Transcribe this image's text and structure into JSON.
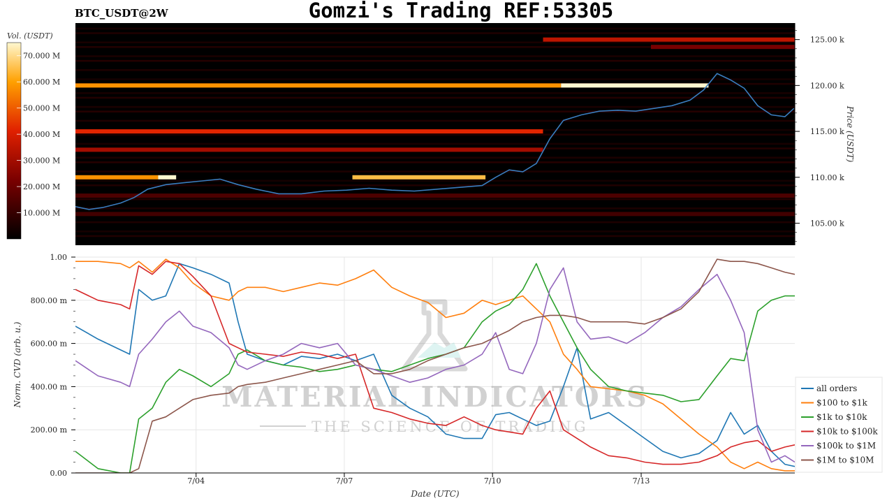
{
  "header": {
    "title": "Gomzi's Trading REF:53305",
    "pair": "BTC_USDT@2W"
  },
  "watermark": {
    "line1": "MATERIAL INDICATORS",
    "line2": "THE SCIENCE OF TRADING"
  },
  "colors": {
    "price_line": "#3a7dbf",
    "heatmap_bg": "#000000"
  },
  "chart_data": [
    {
      "type": "heatmap",
      "title": "",
      "xlabel": "",
      "ylabel": "Price (USDT)",
      "ylim": [
        102600,
        126800
      ],
      "y_ticks": [
        {
          "value": 105000,
          "label": "105.00 k"
        },
        {
          "value": 110000,
          "label": "110.00 k"
        },
        {
          "value": 115000,
          "label": "115.00 k"
        },
        {
          "value": 120000,
          "label": "120.00 k"
        },
        {
          "value": 125000,
          "label": "125.00 k"
        }
      ],
      "colorbar": {
        "label": "Vol. (USDT)",
        "range": [
          0,
          75000000
        ],
        "ticks": [
          {
            "value": 10000000,
            "label": "10.000 M"
          },
          {
            "value": 20000000,
            "label": "20.000 M"
          },
          {
            "value": 30000000,
            "label": "30.000 M"
          },
          {
            "value": 40000000,
            "label": "40.000 M"
          },
          {
            "value": 50000000,
            "label": "50.000 M"
          },
          {
            "value": 60000000,
            "label": "60.000 M"
          },
          {
            "value": 70000000,
            "label": "70.000 M"
          }
        ]
      },
      "liquidity_bands": [
        {
          "price": 125000,
          "x_start": 0.65,
          "x_end": 1.0,
          "volume": 35000000
        },
        {
          "price": 124200,
          "x_start": 0.8,
          "x_end": 1.0,
          "volume": 22000000
        },
        {
          "price": 120000,
          "x_start": 0.0,
          "x_end": 0.675,
          "volume": 58000000
        },
        {
          "price": 120000,
          "x_start": 0.675,
          "x_end": 0.88,
          "volume": 75000000
        },
        {
          "price": 115000,
          "x_start": 0.0,
          "x_end": 0.65,
          "volume": 42000000
        },
        {
          "price": 113000,
          "x_start": 0.0,
          "x_end": 0.65,
          "volume": 30000000
        },
        {
          "price": 110000,
          "x_start": 0.0,
          "x_end": 0.115,
          "volume": 58000000
        },
        {
          "price": 110000,
          "x_start": 0.115,
          "x_end": 0.14,
          "volume": 75000000
        },
        {
          "price": 110000,
          "x_start": 0.385,
          "x_end": 0.57,
          "volume": 65000000
        },
        {
          "price": 108000,
          "x_start": 0.0,
          "x_end": 1.0,
          "volume": 14000000
        },
        {
          "price": 106000,
          "x_start": 0.0,
          "x_end": 1.0,
          "volume": 12000000
        }
      ],
      "price_series": {
        "name": "",
        "x_days": [
          0,
          0.3,
          0.6,
          1.0,
          1.3,
          1.6,
          2.0,
          2.4,
          2.8,
          3.2,
          3.6,
          4.0,
          4.5,
          5.0,
          5.5,
          6.0,
          6.5,
          7.0,
          7.5,
          8.0,
          8.5,
          9.0,
          9.3,
          9.6,
          9.9,
          10.2,
          10.5,
          10.8,
          11.2,
          11.6,
          12.0,
          12.4,
          12.8,
          13.2,
          13.6,
          13.9,
          14.2,
          14.5,
          14.8,
          15.1,
          15.4,
          15.7,
          15.9
        ],
        "y": [
          106800,
          106500,
          106700,
          107200,
          107800,
          108700,
          109200,
          109400,
          109600,
          109800,
          109200,
          108700,
          108200,
          108200,
          108500,
          108600,
          108800,
          108600,
          108500,
          108700,
          108900,
          109100,
          110000,
          110800,
          110600,
          111500,
          114200,
          116200,
          116800,
          117200,
          117300,
          117200,
          117500,
          117800,
          118400,
          119500,
          121300,
          120600,
          119700,
          117800,
          116800,
          116600,
          117500
        ]
      }
    },
    {
      "type": "line",
      "title": "",
      "xlabel": "Date (UTC)",
      "ylabel": "Norm. CVD (arb. u.)",
      "ylim": [
        0,
        1
      ],
      "xlim": [
        0,
        15.92
      ],
      "x_ticks": [
        {
          "value": 2.67,
          "label": "7/04"
        },
        {
          "value": 5.95,
          "label": "7/07"
        },
        {
          "value": 9.23,
          "label": "7/10"
        },
        {
          "value": 12.52,
          "label": "7/13"
        }
      ],
      "y_ticks": [
        {
          "value": 0,
          "label": "0.00"
        },
        {
          "value": 0.2,
          "label": "200.00 m"
        },
        {
          "value": 0.4,
          "label": "400.00 m"
        },
        {
          "value": 0.6,
          "label": "600.00 m"
        },
        {
          "value": 0.8,
          "label": "800.00 m"
        },
        {
          "value": 1.0,
          "label": "1.00"
        }
      ],
      "legend_placement": "bottom-right",
      "x": [
        0,
        0.5,
        1.0,
        1.2,
        1.4,
        1.7,
        2.0,
        2.3,
        2.6,
        3.0,
        3.4,
        3.6,
        3.8,
        4.2,
        4.6,
        5.0,
        5.4,
        5.8,
        6.2,
        6.6,
        7.0,
        7.4,
        7.8,
        8.2,
        8.6,
        9.0,
        9.3,
        9.6,
        9.9,
        10.2,
        10.5,
        10.8,
        11.1,
        11.4,
        11.8,
        12.2,
        12.6,
        13.0,
        13.4,
        13.8,
        14.2,
        14.5,
        14.8,
        15.1,
        15.4,
        15.7,
        15.92
      ],
      "series": [
        {
          "name": "all orders",
          "color": "#1f77b4",
          "values": [
            0.68,
            0.62,
            0.57,
            0.55,
            0.85,
            0.8,
            0.82,
            0.97,
            0.95,
            0.92,
            0.88,
            0.7,
            0.55,
            0.52,
            0.5,
            0.54,
            0.53,
            0.55,
            0.52,
            0.55,
            0.36,
            0.3,
            0.26,
            0.18,
            0.16,
            0.16,
            0.27,
            0.28,
            0.25,
            0.22,
            0.24,
            0.4,
            0.58,
            0.25,
            0.28,
            0.22,
            0.16,
            0.1,
            0.07,
            0.09,
            0.15,
            0.28,
            0.18,
            0.22,
            0.1,
            0.04,
            0.03
          ]
        },
        {
          "name": "$100 to $1k",
          "color": "#ff7f0e",
          "values": [
            0.98,
            0.98,
            0.97,
            0.95,
            0.98,
            0.93,
            0.99,
            0.95,
            0.88,
            0.82,
            0.8,
            0.84,
            0.86,
            0.86,
            0.84,
            0.86,
            0.88,
            0.87,
            0.9,
            0.94,
            0.86,
            0.82,
            0.79,
            0.72,
            0.74,
            0.8,
            0.78,
            0.8,
            0.82,
            0.76,
            0.7,
            0.55,
            0.48,
            0.4,
            0.39,
            0.38,
            0.36,
            0.32,
            0.25,
            0.18,
            0.12,
            0.05,
            0.02,
            0.05,
            0.02,
            0.01,
            0.01
          ]
        },
        {
          "name": "$1k to $10k",
          "color": "#2ca02c",
          "values": [
            0.1,
            0.02,
            0.0,
            0.0,
            0.25,
            0.3,
            0.42,
            0.48,
            0.45,
            0.4,
            0.46,
            0.55,
            0.57,
            0.52,
            0.5,
            0.49,
            0.47,
            0.48,
            0.5,
            0.48,
            0.47,
            0.5,
            0.53,
            0.55,
            0.58,
            0.7,
            0.75,
            0.78,
            0.85,
            0.97,
            0.82,
            0.7,
            0.58,
            0.48,
            0.4,
            0.38,
            0.37,
            0.36,
            0.33,
            0.34,
            0.45,
            0.53,
            0.52,
            0.75,
            0.8,
            0.82,
            0.82
          ]
        },
        {
          "name": "$10k to $100k",
          "color": "#d62728",
          "values": [
            0.85,
            0.8,
            0.78,
            0.76,
            0.96,
            0.92,
            0.98,
            0.97,
            0.91,
            0.82,
            0.6,
            0.58,
            0.56,
            0.55,
            0.54,
            0.56,
            0.55,
            0.53,
            0.55,
            0.3,
            0.28,
            0.25,
            0.23,
            0.22,
            0.26,
            0.22,
            0.2,
            0.19,
            0.18,
            0.3,
            0.38,
            0.2,
            0.16,
            0.12,
            0.08,
            0.07,
            0.05,
            0.04,
            0.04,
            0.05,
            0.08,
            0.12,
            0.14,
            0.15,
            0.1,
            0.12,
            0.13
          ]
        },
        {
          "name": "$100k to $1M",
          "color": "#9467bd",
          "values": [
            0.52,
            0.45,
            0.42,
            0.4,
            0.55,
            0.62,
            0.7,
            0.75,
            0.68,
            0.65,
            0.58,
            0.5,
            0.48,
            0.52,
            0.55,
            0.6,
            0.58,
            0.6,
            0.5,
            0.48,
            0.45,
            0.42,
            0.44,
            0.48,
            0.5,
            0.55,
            0.65,
            0.48,
            0.46,
            0.6,
            0.85,
            0.95,
            0.7,
            0.62,
            0.63,
            0.6,
            0.65,
            0.72,
            0.77,
            0.85,
            0.92,
            0.8,
            0.65,
            0.2,
            0.05,
            0.08,
            0.05
          ]
        },
        {
          "name": "$1M to $10M",
          "color": "#8c564b",
          "values": [
            0.0,
            0.0,
            0.0,
            0.0,
            0.02,
            0.24,
            0.26,
            0.3,
            0.34,
            0.36,
            0.37,
            0.4,
            0.41,
            0.42,
            0.44,
            0.46,
            0.48,
            0.5,
            0.52,
            0.46,
            0.46,
            0.48,
            0.52,
            0.55,
            0.58,
            0.6,
            0.63,
            0.66,
            0.7,
            0.72,
            0.73,
            0.73,
            0.72,
            0.7,
            0.7,
            0.7,
            0.69,
            0.72,
            0.76,
            0.84,
            0.99,
            0.98,
            0.98,
            0.97,
            0.95,
            0.93,
            0.92
          ]
        }
      ]
    }
  ]
}
